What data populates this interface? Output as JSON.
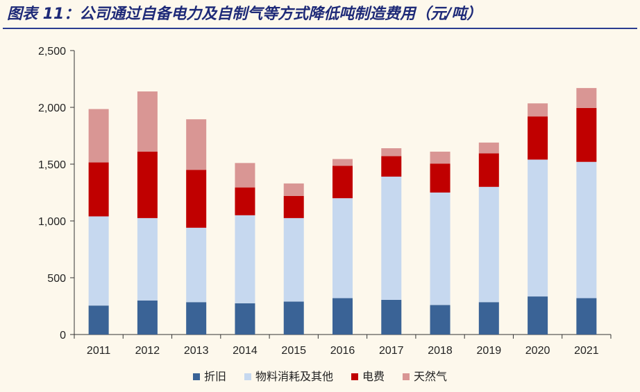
{
  "figure_title": "图表 11：公司通过自备电力及自制气等方式降低吨制造费用（元/吨）",
  "colors": {
    "background": "#fdf8ec",
    "title": "#1e2a78",
    "title_rule": "#2a3b8f",
    "axis": "#333333"
  },
  "chart_data": {
    "type": "bar",
    "stacked": true,
    "title": "",
    "xlabel": "",
    "ylabel": "",
    "ylim": [
      0,
      2500
    ],
    "yticks": [
      0,
      500,
      1000,
      1500,
      2000,
      2500
    ],
    "ytick_labels": [
      "0",
      "500",
      "1,000",
      "1,500",
      "2,000",
      "2,500"
    ],
    "grid": false,
    "legend_position": "bottom",
    "categories": [
      "2011",
      "2012",
      "2013",
      "2014",
      "2015",
      "2016",
      "2017",
      "2018",
      "2019",
      "2020",
      "2021"
    ],
    "series": [
      {
        "name": "折旧",
        "color": "#3a6396",
        "values": [
          255,
          300,
          285,
          275,
          290,
          320,
          305,
          260,
          285,
          335,
          320
        ]
      },
      {
        "name": "物料消耗及其他",
        "color": "#c6d8ef",
        "values": [
          785,
          725,
          655,
          775,
          735,
          880,
          1085,
          990,
          1015,
          1205,
          1200
        ]
      },
      {
        "name": "电费",
        "color": "#c00000",
        "values": [
          475,
          585,
          510,
          245,
          195,
          285,
          180,
          255,
          295,
          380,
          475
        ]
      },
      {
        "name": "天然气",
        "color": "#d99694",
        "values": [
          470,
          530,
          445,
          215,
          110,
          60,
          70,
          105,
          95,
          115,
          175
        ]
      }
    ]
  }
}
